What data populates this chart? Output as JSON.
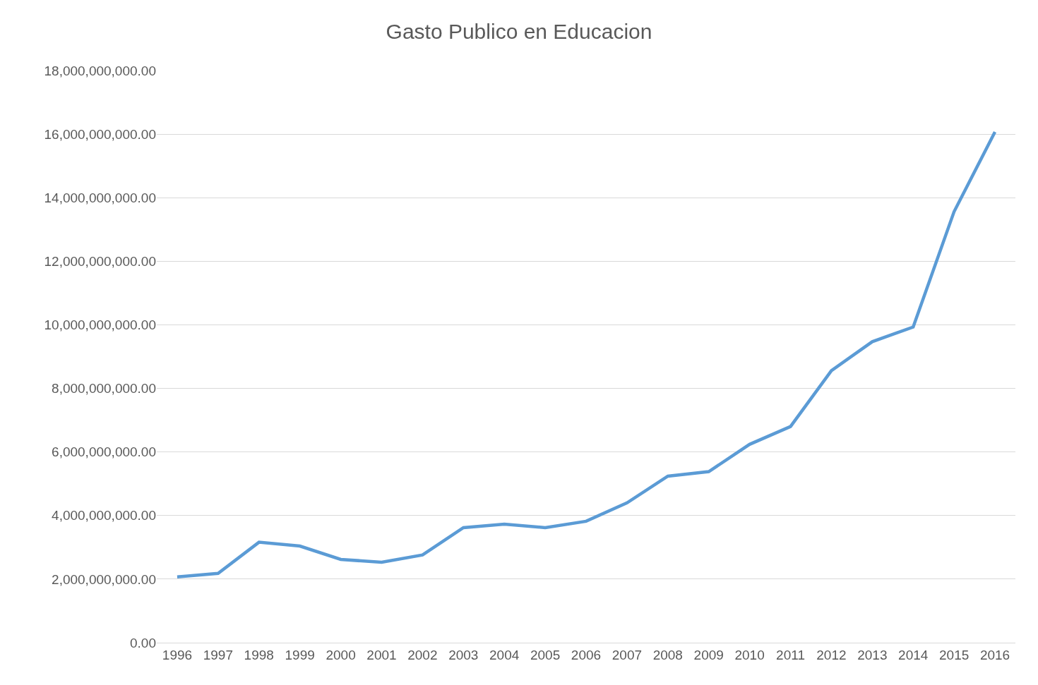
{
  "chart_data": {
    "type": "line",
    "title": "Gasto Publico en Educacion",
    "categories": [
      "1996",
      "1997",
      "1998",
      "1999",
      "2000",
      "2001",
      "2002",
      "2003",
      "2004",
      "2005",
      "2006",
      "2007",
      "2008",
      "2009",
      "2010",
      "2011",
      "2012",
      "2013",
      "2014",
      "2015",
      "2016"
    ],
    "values": [
      2070000000,
      2180000000,
      3160000000,
      3040000000,
      2620000000,
      2530000000,
      2760000000,
      3620000000,
      3730000000,
      3620000000,
      3820000000,
      4400000000,
      5240000000,
      5380000000,
      6240000000,
      6800000000,
      8560000000,
      9470000000,
      9930000000,
      13560000000,
      16070000000
    ],
    "color": "#5b9bd5",
    "ylim": [
      0,
      18000000000
    ],
    "yticks": [
      {
        "value": 0,
        "label": "0.00"
      },
      {
        "value": 2000000000,
        "label": "2,000,000,000.00"
      },
      {
        "value": 4000000000,
        "label": "4,000,000,000.00"
      },
      {
        "value": 6000000000,
        "label": "6,000,000,000.00"
      },
      {
        "value": 8000000000,
        "label": "8,000,000,000.00"
      },
      {
        "value": 10000000000,
        "label": "10,000,000,000.00"
      },
      {
        "value": 12000000000,
        "label": "12,000,000,000.00"
      },
      {
        "value": 14000000000,
        "label": "14,000,000,000.00"
      },
      {
        "value": 16000000000,
        "label": "16,000,000,000.00"
      },
      {
        "value": 18000000000,
        "label": "18,000,000,000.00"
      }
    ],
    "grid": "y",
    "marker": "none",
    "line_style": "solid",
    "legend": false
  }
}
